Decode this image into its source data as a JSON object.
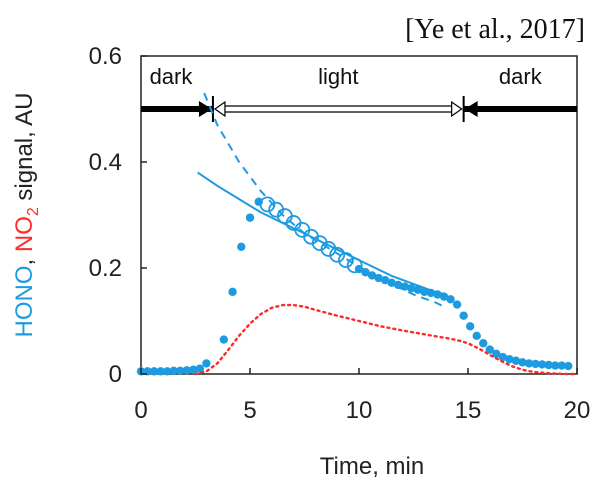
{
  "citation": "[Ye et al., 2017]",
  "colors": {
    "hono": "#1e9be0",
    "no2": "#ff2a2a",
    "axis": "#222222",
    "arrow": "#000000"
  },
  "chart_data": {
    "type": "scatter",
    "xlabel": "Time, min",
    "ylabel_parts": [
      {
        "text": "HONO",
        "color_key": "hono"
      },
      {
        "text": ", ",
        "color_key": "axis"
      },
      {
        "text": "NO",
        "color_key": "no2"
      },
      {
        "text": "2",
        "color_key": "no2",
        "subscript": true
      },
      {
        "text": " signal, AU",
        "color_key": "axis"
      }
    ],
    "xlim": [
      0,
      20
    ],
    "ylim": [
      0,
      0.6
    ],
    "xticks": [
      "0",
      "5",
      "10",
      "15",
      "20"
    ],
    "yticks": [
      "0",
      "0.2",
      "0.4",
      "0.6"
    ],
    "xtick_values": [
      0,
      5,
      10,
      15,
      20
    ],
    "ytick_values": [
      0,
      0.2,
      0.4,
      0.6
    ],
    "grid": false,
    "phases": [
      {
        "label": "dark",
        "start": 0,
        "end": 3.3,
        "style": "solid"
      },
      {
        "label": "light",
        "start": 3.3,
        "end": 14.8,
        "style": "hollow"
      },
      {
        "label": "dark",
        "start": 14.8,
        "end": 20,
        "style": "solid"
      }
    ],
    "phase_y": 0.5,
    "series": [
      {
        "id": "hono-filled",
        "style": "filled-dots",
        "color_key": "hono",
        "x": [
          0,
          0.3,
          0.6,
          0.9,
          1.2,
          1.5,
          1.8,
          2.1,
          2.4,
          2.7,
          3.0,
          3.8,
          4.2,
          4.6,
          5.0,
          5.4,
          10.0,
          10.3,
          10.6,
          10.9,
          11.2,
          11.5,
          11.8,
          12.1,
          12.4,
          12.7,
          13.0,
          13.3,
          13.6,
          13.9,
          14.2,
          14.5,
          14.8,
          15.1,
          15.4,
          15.7,
          16.0,
          16.3,
          16.6,
          16.9,
          17.2,
          17.5,
          17.8,
          18.1,
          18.4,
          18.7,
          19.0,
          19.3,
          19.6
        ],
        "y": [
          0.005,
          0.005,
          0.005,
          0.005,
          0.005,
          0.006,
          0.006,
          0.007,
          0.008,
          0.01,
          0.02,
          0.065,
          0.155,
          0.24,
          0.295,
          0.325,
          0.198,
          0.192,
          0.186,
          0.181,
          0.177,
          0.172,
          0.168,
          0.165,
          0.162,
          0.159,
          0.155,
          0.153,
          0.15,
          0.146,
          0.141,
          0.131,
          0.11,
          0.09,
          0.072,
          0.058,
          0.046,
          0.038,
          0.032,
          0.028,
          0.025,
          0.022,
          0.02,
          0.019,
          0.018,
          0.017,
          0.016,
          0.016,
          0.015
        ]
      },
      {
        "id": "hono-open",
        "style": "open-circles",
        "color_key": "hono",
        "x": [
          5.8,
          6.2,
          6.6,
          7.0,
          7.4,
          7.8,
          8.2,
          8.6,
          9.0,
          9.4,
          9.8
        ],
        "y": [
          0.32,
          0.31,
          0.298,
          0.285,
          0.272,
          0.259,
          0.247,
          0.236,
          0.225,
          0.215,
          0.205
        ]
      },
      {
        "id": "hono-fit-solid",
        "style": "solid-line",
        "color_key": "hono",
        "x": [
          2.6,
          3.5,
          4.5,
          5.5,
          6.5,
          7.5,
          8.5,
          9.5,
          10.5,
          11.5,
          12.5,
          13.5,
          14.0
        ],
        "y": [
          0.38,
          0.355,
          0.33,
          0.305,
          0.285,
          0.265,
          0.245,
          0.225,
          0.205,
          0.185,
          0.17,
          0.155,
          0.15
        ]
      },
      {
        "id": "hono-fit-dashed",
        "style": "dashed-line",
        "color_key": "hono",
        "x": [
          2.9,
          3.5,
          4.5,
          5.5,
          6.5,
          7.5,
          8.5,
          9.5,
          10.5,
          11.5,
          12.5,
          13.5,
          14.0
        ],
        "y": [
          0.53,
          0.47,
          0.4,
          0.345,
          0.3,
          0.265,
          0.24,
          0.215,
          0.19,
          0.17,
          0.15,
          0.135,
          0.125
        ]
      },
      {
        "id": "no2-dotted",
        "style": "dotted-line",
        "color_key": "no2",
        "x": [
          2.5,
          3.0,
          3.5,
          4.0,
          4.5,
          5.0,
          5.5,
          6.0,
          6.5,
          7.0,
          7.5,
          8.0,
          9.0,
          10.0,
          11.0,
          12.0,
          13.0,
          14.0,
          14.5,
          15.0,
          15.5,
          16.0,
          16.5,
          17.0,
          17.5,
          18.0,
          18.5,
          19.0,
          19.5,
          20.0
        ],
        "y": [
          0.0,
          0.005,
          0.02,
          0.045,
          0.072,
          0.095,
          0.113,
          0.125,
          0.13,
          0.13,
          0.127,
          0.121,
          0.11,
          0.1,
          0.09,
          0.082,
          0.075,
          0.068,
          0.064,
          0.058,
          0.048,
          0.036,
          0.025,
          0.015,
          0.008,
          0.004,
          0.002,
          0.001,
          0.0,
          0.0
        ]
      }
    ]
  }
}
